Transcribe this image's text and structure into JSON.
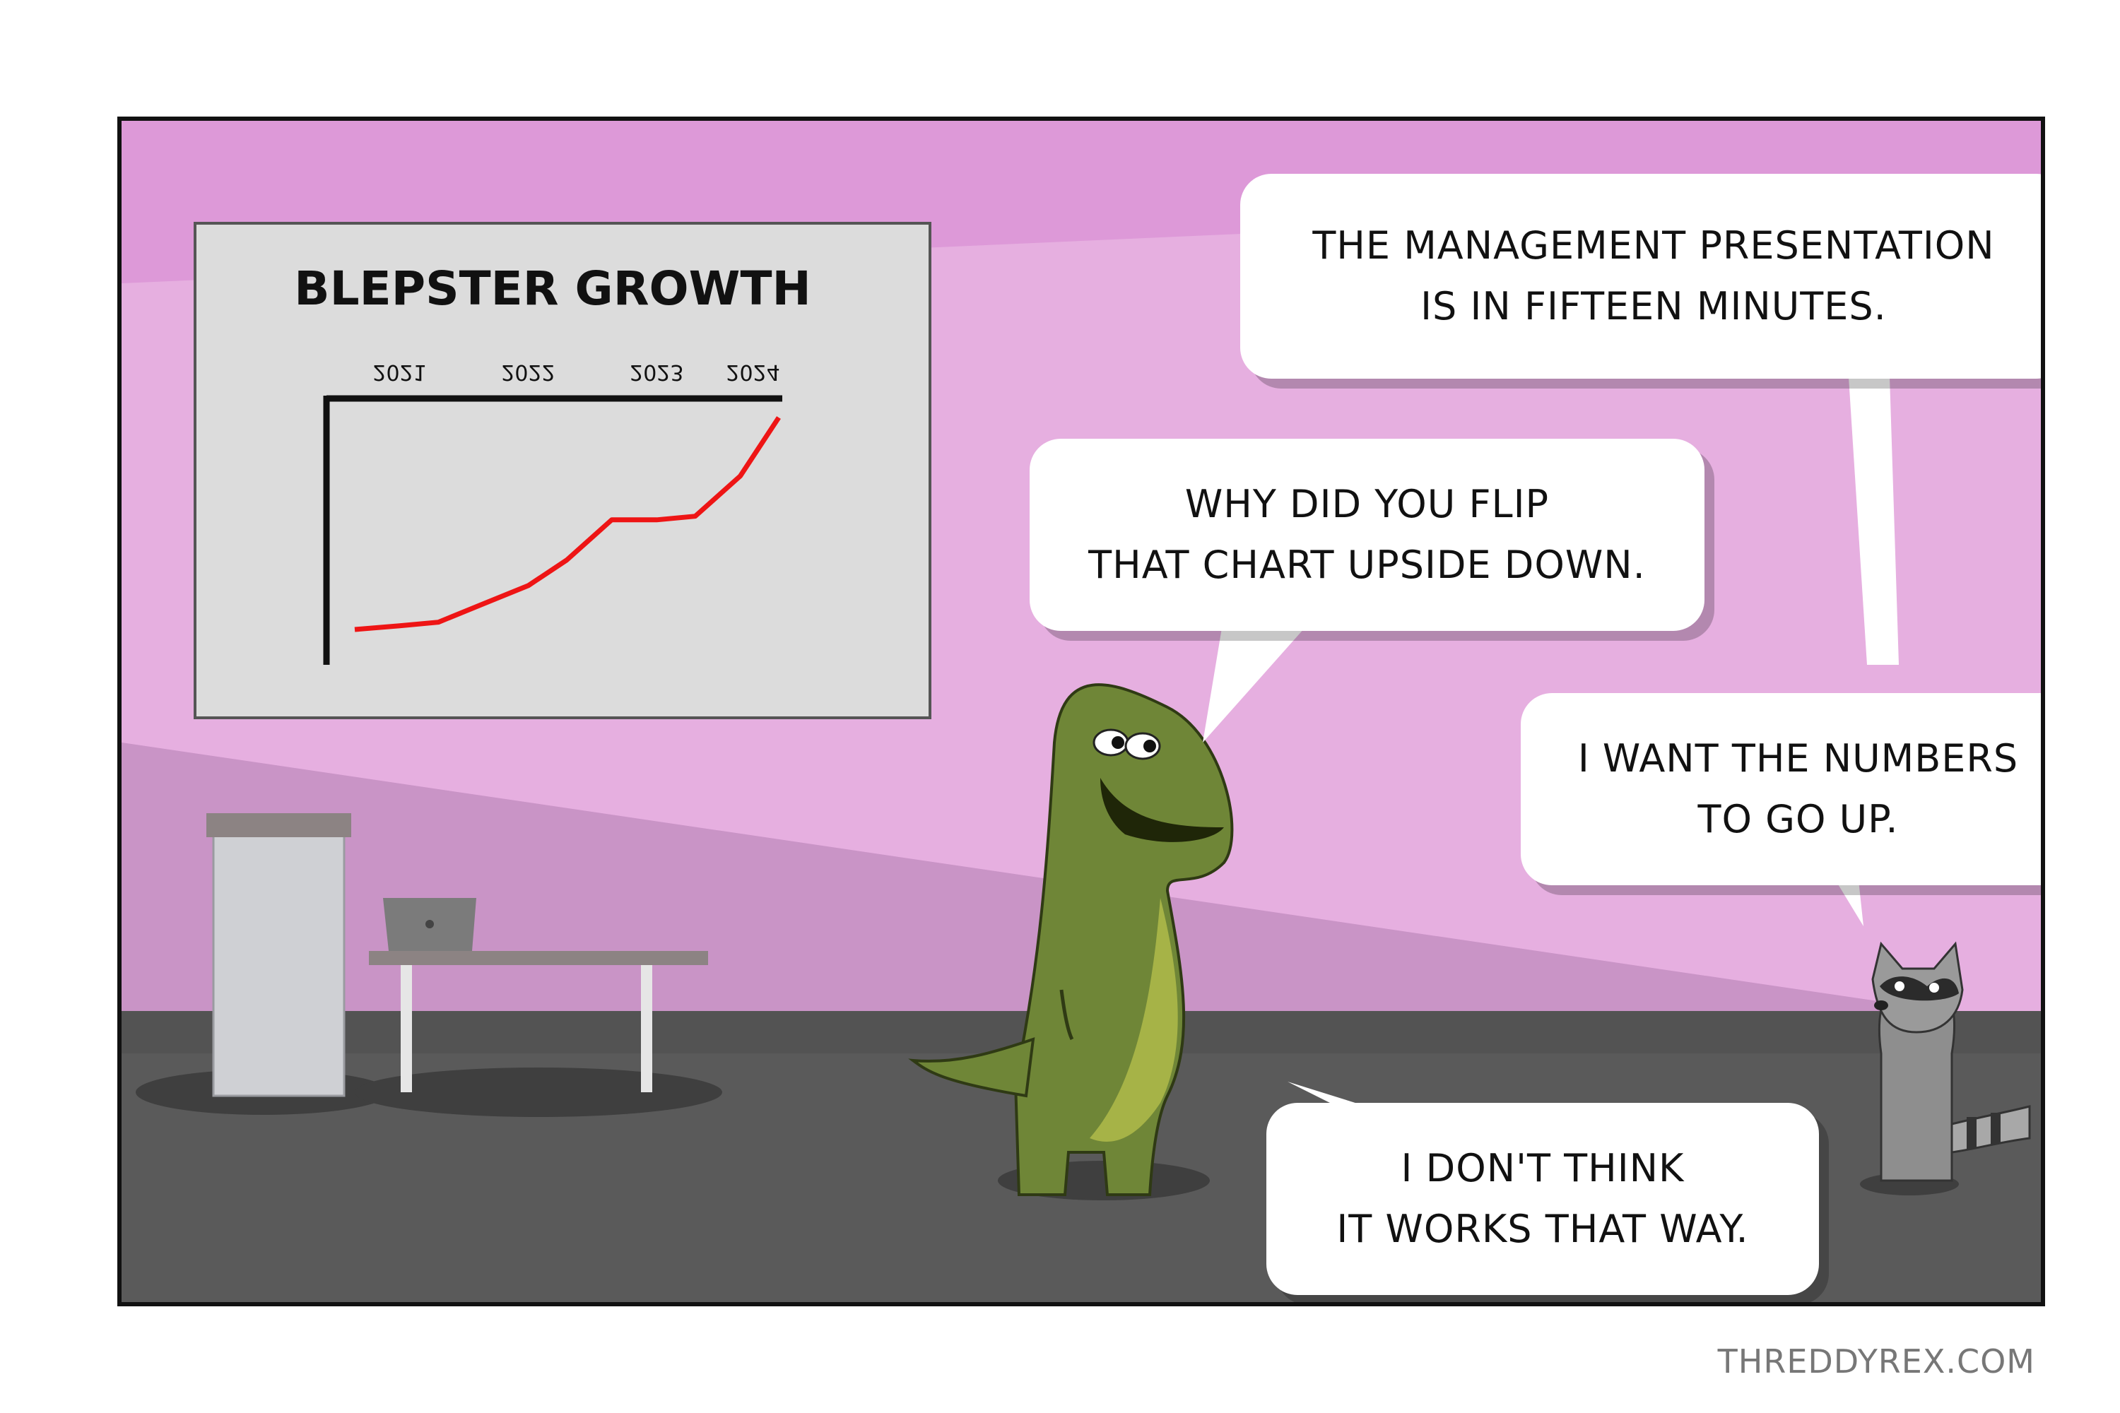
{
  "colors": {
    "wall_upper": "#e4a2db",
    "wall_lower": "#c995c6",
    "floor": "#5c5c5c",
    "dino": "#6e8436",
    "dino_belly": "#a6b347",
    "raccoon": "#8e8e8e",
    "chart_line": "#ee1515"
  },
  "chart_data": {
    "type": "line",
    "title": "BLEPSTER GROWTH",
    "categories": [
      "2021",
      "2022",
      "2023",
      "2024"
    ],
    "tick_labels_mirrored": true,
    "orientation": "upside-down",
    "x": [
      0,
      0.35,
      0.65,
      1.0,
      1.35,
      1.65,
      2.0,
      2.35,
      2.65,
      3.0,
      3.3
    ],
    "values": [
      1.0,
      1.05,
      1.1,
      1.35,
      1.6,
      1.95,
      2.5,
      2.5,
      2.55,
      3.1,
      3.9
    ],
    "series": [
      {
        "values": [
          1.0,
          1.05,
          1.1,
          1.35,
          1.6,
          1.95,
          2.5,
          2.5,
          2.55,
          3.1,
          3.9
        ]
      }
    ],
    "xlabel": "",
    "ylabel": "",
    "grid": false
  },
  "dialogue": {
    "raccoon_1": "THE MANAGEMENT PRESENTATION\nIS IN FIFTEEN MINUTES.",
    "dino_1": "WHY DID YOU FLIP\nTHAT CHART UPSIDE DOWN.",
    "raccoon_2": "I WANT THE NUMBERS\nTO GO UP.",
    "dino_2": "I DON'T THINK\nIT WORKS THAT WAY."
  },
  "credit": "THREDDYREX.COM"
}
